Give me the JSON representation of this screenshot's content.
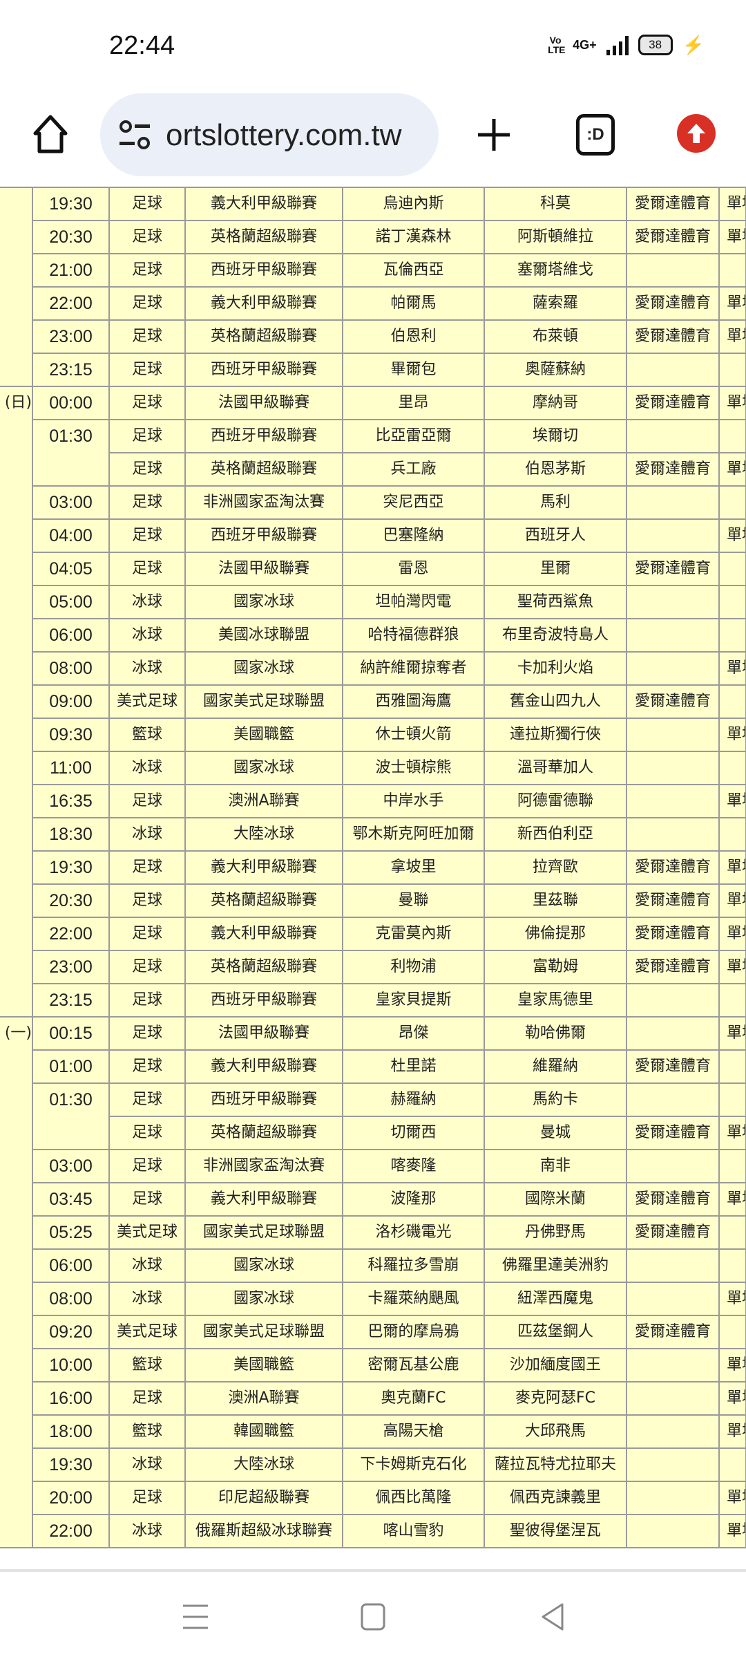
{
  "status_bar": {
    "time": "22:44",
    "volte": "Vo LTE",
    "network": "4G+",
    "battery": "38"
  },
  "browser": {
    "url": "ortslottery.com.tw"
  },
  "colors": {
    "cell_bg": "#ffffcc",
    "border": "#9a9a9a",
    "update_badge": "#d93025"
  },
  "schedule": [
    {
      "day": "",
      "rows": [
        {
          "time": "19:30",
          "sport": "足球",
          "league": "義大利甲級聯賽",
          "home": "烏迪內斯",
          "away": "科莫",
          "tv": "愛爾達體育",
          "single": "單場"
        },
        {
          "time": "20:30",
          "sport": "足球",
          "league": "英格蘭超級聯賽",
          "home": "諾丁漢森林",
          "away": "阿斯頓維拉",
          "tv": "愛爾達體育",
          "single": "單場"
        },
        {
          "time": "21:00",
          "sport": "足球",
          "league": "西班牙甲級聯賽",
          "home": "瓦倫西亞",
          "away": "塞爾塔維戈",
          "tv": "",
          "single": ""
        },
        {
          "time": "22:00",
          "sport": "足球",
          "league": "義大利甲級聯賽",
          "home": "帕爾馬",
          "away": "薩索羅",
          "tv": "愛爾達體育",
          "single": "單場"
        },
        {
          "time": "23:00",
          "sport": "足球",
          "league": "英格蘭超級聯賽",
          "home": "伯恩利",
          "away": "布萊頓",
          "tv": "愛爾達體育",
          "single": "單場"
        },
        {
          "time": "23:15",
          "sport": "足球",
          "league": "西班牙甲級聯賽",
          "home": "畢爾包",
          "away": "奧薩蘇納",
          "tv": "",
          "single": ""
        }
      ]
    },
    {
      "day": "(日)",
      "rows": [
        {
          "time": "00:00",
          "sport": "足球",
          "league": "法國甲級聯賽",
          "home": "里昂",
          "away": "摩納哥",
          "tv": "愛爾達體育",
          "single": "單場"
        },
        {
          "time": "01:30",
          "sport": "足球",
          "league": "西班牙甲級聯賽",
          "home": "比亞雷亞爾",
          "away": "埃爾切",
          "tv": "",
          "single": ""
        },
        {
          "time": "",
          "sport": "足球",
          "league": "英格蘭超級聯賽",
          "home": "兵工廠",
          "away": "伯恩茅斯",
          "tv": "愛爾達體育",
          "single": "單場"
        },
        {
          "time": "03:00",
          "sport": "足球",
          "league": "非洲國家盃淘汰賽",
          "home": "突尼西亞",
          "away": "馬利",
          "tv": "",
          "single": ""
        },
        {
          "time": "04:00",
          "sport": "足球",
          "league": "西班牙甲級聯賽",
          "home": "巴塞隆納",
          "away": "西班牙人",
          "tv": "",
          "single": "單場"
        },
        {
          "time": "04:05",
          "sport": "足球",
          "league": "法國甲級聯賽",
          "home": "雷恩",
          "away": "里爾",
          "tv": "愛爾達體育",
          "single": ""
        },
        {
          "time": "05:00",
          "sport": "冰球",
          "league": "國家冰球",
          "home": "坦帕灣閃電",
          "away": "聖荷西鯊魚",
          "tv": "",
          "single": ""
        },
        {
          "time": "06:00",
          "sport": "冰球",
          "league": "美國冰球聯盟",
          "home": "哈特福德群狼",
          "away": "布里奇波特島人",
          "tv": "",
          "single": ""
        },
        {
          "time": "08:00",
          "sport": "冰球",
          "league": "國家冰球",
          "home": "納許維爾掠奪者",
          "away": "卡加利火焰",
          "tv": "",
          "single": "單場"
        },
        {
          "time": "09:00",
          "sport": "美式足球",
          "league": "國家美式足球聯盟",
          "home": "西雅圖海鷹",
          "away": "舊金山四九人",
          "tv": "愛爾達體育",
          "single": ""
        },
        {
          "time": "09:30",
          "sport": "籃球",
          "league": "美國職籃",
          "home": "休士頓火箭",
          "away": "達拉斯獨行俠",
          "tv": "",
          "single": "單場"
        },
        {
          "time": "11:00",
          "sport": "冰球",
          "league": "國家冰球",
          "home": "波士頓棕熊",
          "away": "溫哥華加人",
          "tv": "",
          "single": ""
        },
        {
          "time": "16:35",
          "sport": "足球",
          "league": "澳洲A聯賽",
          "home": "中岸水手",
          "away": "阿德雷德聯",
          "tv": "",
          "single": "單場"
        },
        {
          "time": "18:30",
          "sport": "冰球",
          "league": "大陸冰球",
          "home": "鄂木斯克阿旺加爾",
          "away": "新西伯利亞",
          "tv": "",
          "single": ""
        },
        {
          "time": "19:30",
          "sport": "足球",
          "league": "義大利甲級聯賽",
          "home": "拿坡里",
          "away": "拉齊歐",
          "tv": "愛爾達體育",
          "single": "單場"
        },
        {
          "time": "20:30",
          "sport": "足球",
          "league": "英格蘭超級聯賽",
          "home": "曼聯",
          "away": "里茲聯",
          "tv": "愛爾達體育",
          "single": "單場"
        },
        {
          "time": "22:00",
          "sport": "足球",
          "league": "義大利甲級聯賽",
          "home": "克雷莫內斯",
          "away": "佛倫提那",
          "tv": "愛爾達體育",
          "single": "單場"
        },
        {
          "time": "23:00",
          "sport": "足球",
          "league": "英格蘭超級聯賽",
          "home": "利物浦",
          "away": "富勒姆",
          "tv": "愛爾達體育",
          "single": "單場"
        },
        {
          "time": "23:15",
          "sport": "足球",
          "league": "西班牙甲級聯賽",
          "home": "皇家貝提斯",
          "away": "皇家馬德里",
          "tv": "",
          "single": ""
        }
      ]
    },
    {
      "day": "(一)",
      "rows": [
        {
          "time": "00:15",
          "sport": "足球",
          "league": "法國甲級聯賽",
          "home": "昂傑",
          "away": "勒哈佛爾",
          "tv": "",
          "single": "單場"
        },
        {
          "time": "01:00",
          "sport": "足球",
          "league": "義大利甲級聯賽",
          "home": "杜里諾",
          "away": "維羅納",
          "tv": "愛爾達體育",
          "single": ""
        },
        {
          "time": "01:30",
          "sport": "足球",
          "league": "西班牙甲級聯賽",
          "home": "赫羅納",
          "away": "馬約卡",
          "tv": "",
          "single": ""
        },
        {
          "time": "",
          "sport": "足球",
          "league": "英格蘭超級聯賽",
          "home": "切爾西",
          "away": "曼城",
          "tv": "愛爾達體育",
          "single": "單場"
        },
        {
          "time": "03:00",
          "sport": "足球",
          "league": "非洲國家盃淘汰賽",
          "home": "喀麥隆",
          "away": "南非",
          "tv": "",
          "single": ""
        },
        {
          "time": "03:45",
          "sport": "足球",
          "league": "義大利甲級聯賽",
          "home": "波隆那",
          "away": "國際米蘭",
          "tv": "愛爾達體育",
          "single": "單場"
        },
        {
          "time": "05:25",
          "sport": "美式足球",
          "league": "國家美式足球聯盟",
          "home": "洛杉磯電光",
          "away": "丹佛野馬",
          "tv": "愛爾達體育",
          "single": ""
        },
        {
          "time": "06:00",
          "sport": "冰球",
          "league": "國家冰球",
          "home": "科羅拉多雪崩",
          "away": "佛羅里達美洲豹",
          "tv": "",
          "single": ""
        },
        {
          "time": "08:00",
          "sport": "冰球",
          "league": "國家冰球",
          "home": "卡羅萊納颶風",
          "away": "紐澤西魔鬼",
          "tv": "",
          "single": "單場"
        },
        {
          "time": "09:20",
          "sport": "美式足球",
          "league": "國家美式足球聯盟",
          "home": "巴爾的摩烏鴉",
          "away": "匹茲堡鋼人",
          "tv": "愛爾達體育",
          "single": ""
        },
        {
          "time": "10:00",
          "sport": "籃球",
          "league": "美國職籃",
          "home": "密爾瓦基公鹿",
          "away": "沙加緬度國王",
          "tv": "",
          "single": "單場"
        },
        {
          "time": "16:00",
          "sport": "足球",
          "league": "澳洲A聯賽",
          "home": "奧克蘭FC",
          "away": "麥克阿瑟FC",
          "tv": "",
          "single": "單場"
        },
        {
          "time": "18:00",
          "sport": "籃球",
          "league": "韓國職籃",
          "home": "高陽天槍",
          "away": "大邱飛馬",
          "tv": "",
          "single": "單場"
        },
        {
          "time": "19:30",
          "sport": "冰球",
          "league": "大陸冰球",
          "home": "下卡姆斯克石化",
          "away": "薩拉瓦特尤拉耶夫",
          "tv": "",
          "single": ""
        },
        {
          "time": "20:00",
          "sport": "足球",
          "league": "印尼超級聯賽",
          "home": "佩西比萬隆",
          "away": "佩西克諫義里",
          "tv": "",
          "single": "單場"
        },
        {
          "time": "22:00",
          "sport": "冰球",
          "league": "俄羅斯超級冰球聯賽",
          "home": "喀山雪豹",
          "away": "聖彼得堡涅瓦",
          "tv": "",
          "single": "單場"
        }
      ]
    }
  ]
}
